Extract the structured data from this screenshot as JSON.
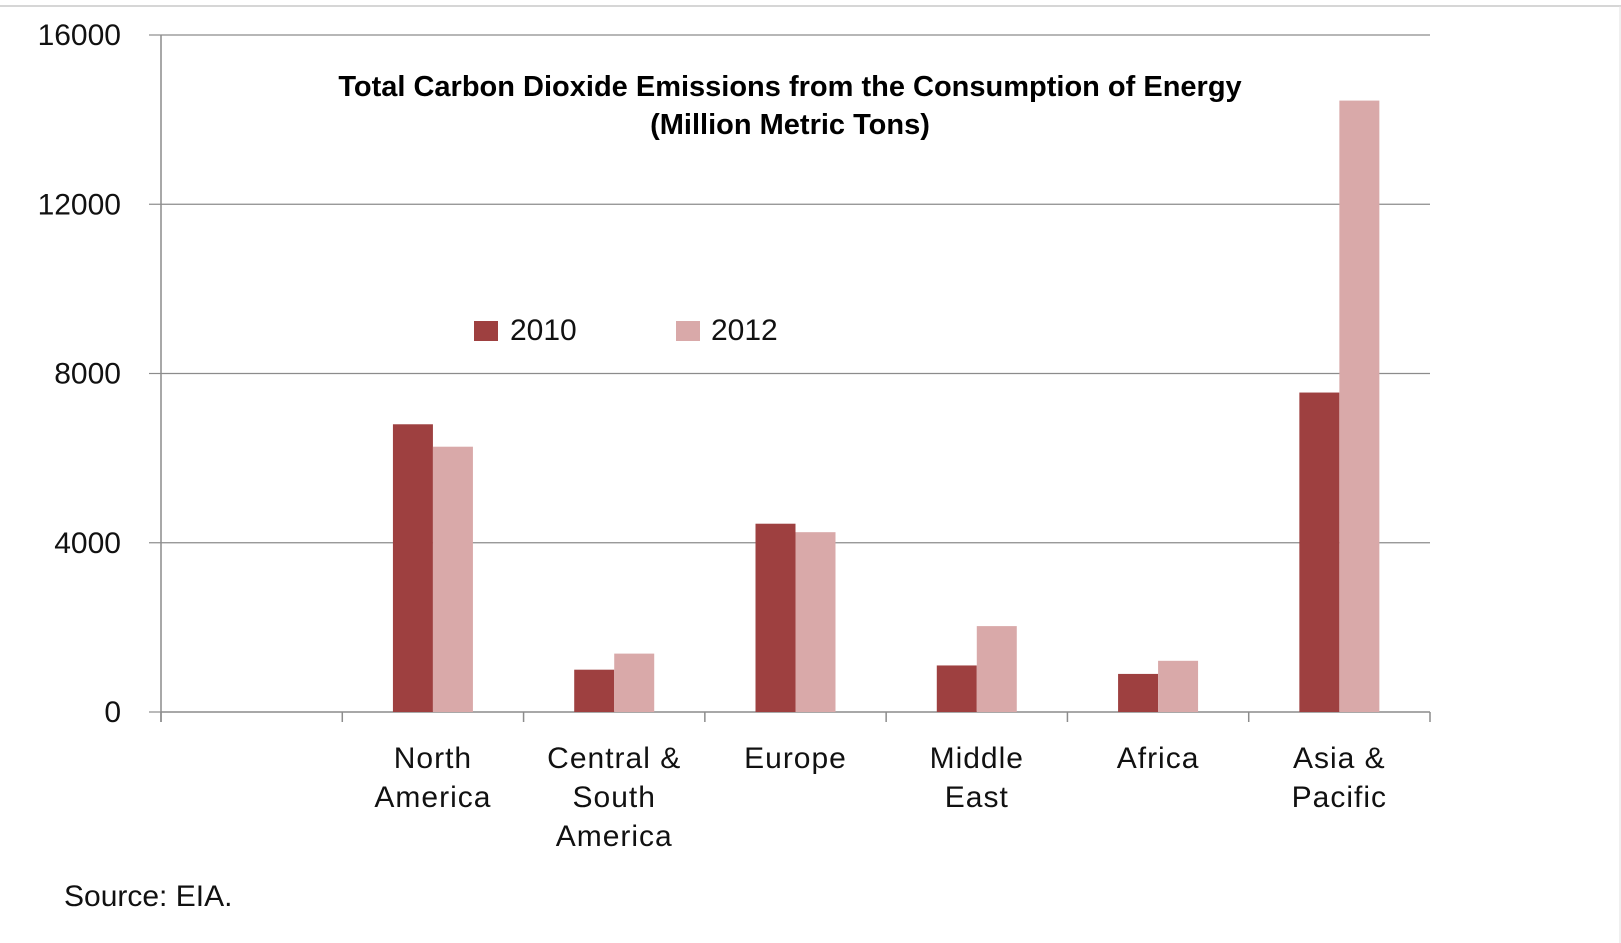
{
  "chart_data": {
    "type": "bar",
    "title": "Total Carbon Dioxide Emissions from the Consumption of Energy",
    "subtitle": "(Million Metric Tons)",
    "categories": [
      "",
      [
        "North",
        "America"
      ],
      [
        "Central &",
        "South",
        "America"
      ],
      [
        "Europe"
      ],
      [
        "Middle",
        "East"
      ],
      [
        "Africa"
      ],
      [
        "Asia &",
        "Pacific"
      ]
    ],
    "series": [
      {
        "name": "2010",
        "color": "#9e4040",
        "values": [
          null,
          6800,
          1000,
          4450,
          1100,
          900,
          7550
        ]
      },
      {
        "name": "2012",
        "color": "#d9a9a9",
        "values": [
          null,
          6270,
          1380,
          4250,
          2030,
          1210,
          14450
        ]
      }
    ],
    "ylim": [
      0,
      16000
    ],
    "yticks": [
      0,
      4000,
      8000,
      12000,
      16000
    ],
    "grid": true,
    "legend_position": "upper-center"
  },
  "footer": {
    "source": "Source: EIA."
  }
}
